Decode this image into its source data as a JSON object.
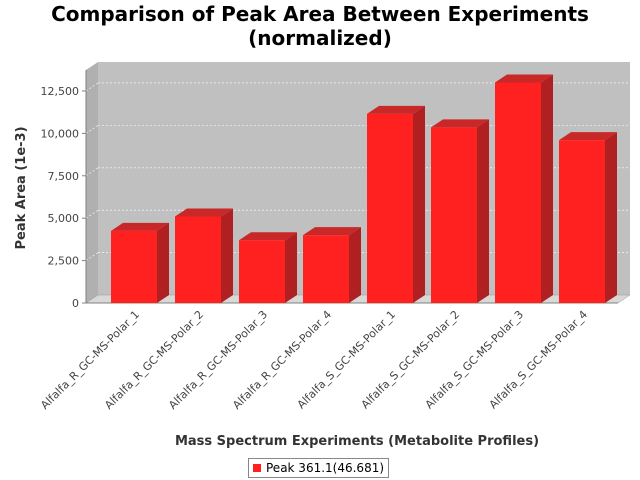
{
  "chart_data": {
    "type": "bar",
    "title": "Comparison of Peak Area Between Experiments (normalized)",
    "title_lines": [
      "Comparison of Peak Area Between Experiments",
      "(normalized)"
    ],
    "xlabel": "Mass Spectrum Experiments (Metabolite Profiles)",
    "ylabel": "Peak Area (1e-3)",
    "categories": [
      "Alfalfa_R_GC-MS-Polar_1",
      "Alfalfa_R_GC-MS-Polar_2",
      "Alfalfa_R_GC-MS-Polar_3",
      "Alfalfa_R_GC-MS-Polar_4",
      "Alfalfa_S_GC-MS-Polar_1",
      "Alfalfa_S_GC-MS-Polar_2",
      "Alfalfa_S_GC-MS-Polar_3",
      "Alfalfa_S_GC-MS-Polar_4"
    ],
    "series": [
      {
        "name": "Peak 361.1(46.681)",
        "values": [
          4250,
          5100,
          3700,
          4000,
          11150,
          10350,
          13000,
          9600
        ]
      }
    ],
    "yticks": [
      0,
      2500,
      5000,
      7500,
      10000,
      12500
    ],
    "ytick_labels": [
      "0",
      "2,500",
      "5,000",
      "7,500",
      "10,000",
      "12,500"
    ],
    "ylim": [
      0,
      13500
    ],
    "grid": true,
    "legend_position": "bottom",
    "colors": {
      "bar_front": "#ff2020",
      "bar_top": "#c82828",
      "bar_side": "#b02020",
      "plot_bg": "#c0c0c0",
      "plot_floor": "#d8d8d8"
    }
  },
  "legend": {
    "label": "Peak 361.1(46.681)"
  }
}
